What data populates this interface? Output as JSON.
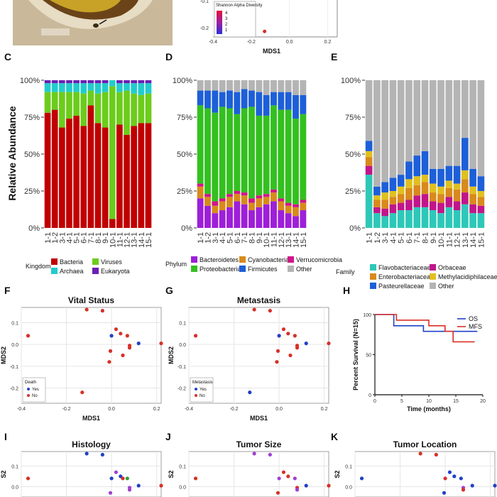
{
  "panel_letters": {
    "C": "C",
    "D": "D",
    "E": "E",
    "F": "F",
    "G": "G",
    "H": "H",
    "I": "I",
    "J": "J",
    "K": "K"
  },
  "shared": {
    "ylabel_rel": "Relative Abundance",
    "mds1": "MDS1",
    "mds2": "MDS2",
    "ylabel_i": "S2"
  },
  "colors": {
    "red": "#d73027",
    "blue": "#2040c8",
    "purple": "#a040d0",
    "green": "#30a030"
  },
  "chart_data": [
    {
      "panel": "A/B",
      "type": "scatter",
      "xlabel": "MDS1",
      "x_ticks": [
        "-0.4",
        "-0.2",
        "0.0",
        "0.2"
      ],
      "y_ticks": [
        "-0.1",
        "-0.2"
      ],
      "legend_title": "Shannon Alpha Diversity",
      "legend_labels": [
        "4",
        "3",
        "2",
        "1"
      ],
      "points": [
        {
          "x": -0.13,
          "y": -0.22
        }
      ]
    },
    {
      "panel": "C",
      "type": "bar",
      "stacked": true,
      "ylabel": "Relative Abundance",
      "legend_title": "Kingdom",
      "legend": [
        "Bacteria",
        "Viruses",
        "Archaea",
        "Eukaryota"
      ],
      "series_colors": [
        "#c00000",
        "#6ccc1c",
        "#22cccc",
        "#6a1fb5"
      ],
      "y_ticks": [
        "0%",
        "25%",
        "50%",
        "75%",
        "100%"
      ],
      "categories": [
        "1-1",
        "1-2",
        "3-1",
        "4-1",
        "5-1",
        "6-1",
        "7-1",
        "8-1",
        "9-1",
        "10-1",
        "11-1",
        "12-1",
        "13-1",
        "14-1",
        "15-1"
      ],
      "values": [
        [
          78,
          80,
          68,
          74,
          76,
          69,
          83,
          71,
          68,
          6,
          70,
          63,
          69,
          71,
          71
        ],
        [
          14,
          12,
          24,
          18,
          16,
          22,
          10,
          20,
          24,
          90,
          22,
          30,
          22,
          19,
          20
        ],
        [
          6,
          6,
          6,
          6,
          6,
          7,
          5,
          7,
          6,
          4,
          6,
          5,
          7,
          8,
          7
        ],
        [
          2,
          2,
          2,
          2,
          2,
          2,
          2,
          2,
          2,
          0,
          2,
          2,
          2,
          2,
          2
        ]
      ]
    },
    {
      "panel": "D",
      "type": "bar",
      "stacked": true,
      "legend_title": "Phylum",
      "legend": [
        "Bacteroidetes",
        "Cyanobacteria",
        "Verrucomicrobia",
        "Proteobacteria",
        "Firmicutes",
        "Other"
      ],
      "series_colors": [
        "#9d1fd8",
        "#d88a1c",
        "#d0168a",
        "#34c020",
        "#1d5fd8",
        "#b4b4b4"
      ],
      "y_ticks": [
        "0%",
        "25%",
        "50%",
        "75%",
        "100%"
      ],
      "categories": [
        "1-1",
        "1-2",
        "3-1",
        "4-1",
        "5-1",
        "6-1",
        "7-1",
        "8-1",
        "9-1",
        "10-1",
        "11-1",
        "12-1",
        "13-1",
        "14-1",
        "15-1"
      ],
      "values": [
        [
          20,
          15,
          10,
          12,
          14,
          18,
          16,
          12,
          14,
          16,
          18,
          12,
          10,
          8,
          12
        ],
        [
          8,
          6,
          5,
          6,
          7,
          5,
          6,
          5,
          6,
          5,
          6,
          6,
          5,
          6,
          5
        ],
        [
          2,
          2,
          3,
          2,
          2,
          2,
          2,
          3,
          2,
          2,
          2,
          2,
          2,
          2,
          2
        ],
        [
          53,
          58,
          60,
          62,
          58,
          52,
          57,
          62,
          54,
          53,
          57,
          60,
          63,
          58,
          58
        ],
        [
          10,
          12,
          15,
          10,
          12,
          15,
          13,
          11,
          16,
          14,
          9,
          12,
          12,
          16,
          13
        ],
        [
          7,
          7,
          7,
          8,
          7,
          8,
          6,
          7,
          8,
          10,
          8,
          8,
          8,
          10,
          10
        ]
      ]
    },
    {
      "panel": "E",
      "type": "bar",
      "stacked": true,
      "legend_title": "Family",
      "legend": [
        "Flavobacteriaceae",
        "Orbaceae",
        "Enterobacteriaceae",
        "Methylacidiphilaceae",
        "Pasteurellaceae",
        "Other"
      ],
      "series_colors": [
        "#2ec8b8",
        "#c0168a",
        "#d88a1c",
        "#e0c020",
        "#1d5fd8",
        "#b4b4b4"
      ],
      "y_ticks": [
        "0%",
        "25%",
        "50%",
        "75%",
        "100%"
      ],
      "categories": [
        "1-1",
        "1-2",
        "3-1",
        "4-1",
        "5-1",
        "6-1",
        "7-1",
        "8-1",
        "9-1",
        "10-1",
        "11-1",
        "12-1",
        "13-1",
        "14-1",
        "15-1"
      ],
      "values": [
        [
          36,
          10,
          8,
          10,
          12,
          12,
          14,
          14,
          12,
          10,
          14,
          12,
          16,
          10,
          10
        ],
        [
          6,
          4,
          5,
          6,
          5,
          7,
          8,
          9,
          6,
          7,
          7,
          6,
          8,
          6,
          5
        ],
        [
          6,
          5,
          6,
          5,
          6,
          8,
          7,
          8,
          6,
          6,
          6,
          8,
          9,
          7,
          6
        ],
        [
          4,
          3,
          5,
          4,
          5,
          6,
          6,
          5,
          6,
          5,
          5,
          4,
          6,
          5,
          4
        ],
        [
          7,
          6,
          7,
          9,
          8,
          12,
          14,
          16,
          10,
          12,
          10,
          12,
          22,
          12,
          10
        ],
        [
          41,
          72,
          69,
          66,
          64,
          55,
          51,
          48,
          60,
          60,
          58,
          58,
          39,
          60,
          65
        ]
      ]
    },
    {
      "panel": "F",
      "type": "scatter",
      "title": "Vital Status",
      "xlabel": "MDS1",
      "ylabel": "MDS2",
      "xlim": [
        -0.4,
        0.22
      ],
      "ylim": [
        -0.27,
        0.17
      ],
      "x_ticks": [
        "-0.4",
        "-0.2",
        "0.0",
        "0.2"
      ],
      "y_ticks": [
        "0.1",
        "0.0",
        "-0.1",
        "-0.2"
      ],
      "legend_title": "Death",
      "legend": [
        "Yes",
        "No"
      ],
      "legend_colors": [
        "#2040c8",
        "#d73027"
      ],
      "points": [
        {
          "x": -0.37,
          "y": 0.04,
          "g": 1
        },
        {
          "x": -0.11,
          "y": 0.16,
          "g": 1
        },
        {
          "x": -0.04,
          "y": 0.155,
          "g": 1
        },
        {
          "x": 0.02,
          "y": 0.07,
          "g": 1
        },
        {
          "x": 0.04,
          "y": 0.05,
          "g": 1
        },
        {
          "x": 0.07,
          "y": 0.04,
          "g": 1
        },
        {
          "x": 0.08,
          "y": -0.005,
          "g": 1
        },
        {
          "x": 0.08,
          "y": -0.015,
          "g": 1
        },
        {
          "x": -0.005,
          "y": -0.03,
          "g": 1
        },
        {
          "x": -0.01,
          "y": -0.08,
          "g": 1
        },
        {
          "x": 0.05,
          "y": -0.05,
          "g": 1
        },
        {
          "x": 0.22,
          "y": 0.005,
          "g": 1
        },
        {
          "x": -0.13,
          "y": -0.22,
          "g": 1
        },
        {
          "x": 0.0,
          "y": 0.04,
          "g": 0
        },
        {
          "x": 0.12,
          "y": 0.005,
          "g": 0
        }
      ]
    },
    {
      "panel": "G",
      "type": "scatter",
      "title": "Metastasis",
      "xlabel": "MDS1",
      "ylabel": "MDS2",
      "xlim": [
        -0.4,
        0.22
      ],
      "ylim": [
        -0.27,
        0.17
      ],
      "x_ticks": [
        "-0.4",
        "-0.2",
        "0.0",
        "0.2"
      ],
      "y_ticks": [
        "0.1",
        "0.0",
        "-0.1",
        "-0.2"
      ],
      "legend_title": "Metastasis",
      "legend": [
        "Yes",
        "No"
      ],
      "legend_colors": [
        "#2040c8",
        "#d73027"
      ],
      "points": [
        {
          "x": -0.37,
          "y": 0.04,
          "g": 1
        },
        {
          "x": -0.11,
          "y": 0.16,
          "g": 1
        },
        {
          "x": -0.04,
          "y": 0.155,
          "g": 1
        },
        {
          "x": 0.04,
          "y": 0.05,
          "g": 1
        },
        {
          "x": 0.07,
          "y": 0.04,
          "g": 1
        },
        {
          "x": 0.08,
          "y": -0.005,
          "g": 1
        },
        {
          "x": 0.08,
          "y": -0.015,
          "g": 1
        },
        {
          "x": -0.005,
          "y": -0.03,
          "g": 1
        },
        {
          "x": -0.01,
          "y": -0.08,
          "g": 1
        },
        {
          "x": 0.05,
          "y": -0.05,
          "g": 1
        },
        {
          "x": 0.22,
          "y": 0.005,
          "g": 1
        },
        {
          "x": 0.02,
          "y": 0.07,
          "g": 1
        },
        {
          "x": 0.0,
          "y": 0.04,
          "g": 0
        },
        {
          "x": 0.12,
          "y": 0.005,
          "g": 0
        },
        {
          "x": -0.13,
          "y": -0.22,
          "g": 0
        }
      ]
    },
    {
      "panel": "H",
      "type": "line",
      "ylabel": "Percent Survival (N=15)",
      "xlabel": "Time (months)",
      "xlim": [
        0,
        20
      ],
      "ylim": [
        0,
        100
      ],
      "x_ticks": [
        "0",
        "5",
        "10",
        "15",
        "20"
      ],
      "y_ticks": [
        "0",
        "50",
        "100"
      ],
      "legend": [
        "OS",
        "MFS"
      ],
      "legend_colors": [
        "#2040c8",
        "#d73027"
      ],
      "series": [
        {
          "name": "OS",
          "steps": [
            [
              0,
              100
            ],
            [
              3.5,
              100
            ],
            [
              3.5,
              86
            ],
            [
              9,
              86
            ],
            [
              9,
              79
            ],
            [
              13,
              79
            ],
            [
              13,
              79
            ],
            [
              19,
              79
            ]
          ]
        },
        {
          "name": "MFS",
          "steps": [
            [
              0,
              100
            ],
            [
              4,
              100
            ],
            [
              4,
              93
            ],
            [
              10,
              93
            ],
            [
              10,
              86
            ],
            [
              13,
              86
            ],
            [
              13,
              79
            ],
            [
              14.5,
              79
            ],
            [
              14.5,
              66
            ],
            [
              18.5,
              66
            ]
          ]
        }
      ]
    },
    {
      "panel": "I",
      "type": "scatter",
      "title": "Histology",
      "ylabel": "S2",
      "ylim": [
        -0.05,
        0.17
      ],
      "y_ticks": [
        "0.1",
        "0.0"
      ],
      "points": [
        {
          "x": -0.37,
          "y": 0.04,
          "g": 1
        },
        {
          "x": -0.11,
          "y": 0.16,
          "g": 0
        },
        {
          "x": -0.04,
          "y": 0.155,
          "g": 0
        },
        {
          "x": 0.02,
          "y": 0.07,
          "g": 2
        },
        {
          "x": 0.04,
          "y": 0.05,
          "g": 0
        },
        {
          "x": 0.07,
          "y": 0.04,
          "g": 3
        },
        {
          "x": 0.08,
          "y": -0.005,
          "g": 2
        },
        {
          "x": 0.08,
          "y": -0.015,
          "g": 2
        },
        {
          "x": -0.005,
          "y": -0.03,
          "g": 2
        },
        {
          "x": 0.05,
          "y": 0.04,
          "g": 1
        },
        {
          "x": 0.0,
          "y": 0.04,
          "g": 0
        },
        {
          "x": 0.12,
          "y": 0.005,
          "g": 0
        },
        {
          "x": 0.22,
          "y": 0.005,
          "g": 1
        }
      ]
    },
    {
      "panel": "J",
      "type": "scatter",
      "title": "Tumor Size",
      "ylabel": "S2",
      "ylim": [
        -0.05,
        0.17
      ],
      "y_ticks": [
        "0.1",
        "0.0"
      ],
      "points": [
        {
          "x": -0.37,
          "y": 0.04,
          "g": 1
        },
        {
          "x": -0.11,
          "y": 0.16,
          "g": 2
        },
        {
          "x": -0.04,
          "y": 0.155,
          "g": 2
        },
        {
          "x": 0.02,
          "y": 0.07,
          "g": 1
        },
        {
          "x": 0.04,
          "y": 0.05,
          "g": 1
        },
        {
          "x": 0.07,
          "y": 0.04,
          "g": 2
        },
        {
          "x": 0.08,
          "y": -0.005,
          "g": 1
        },
        {
          "x": 0.08,
          "y": -0.015,
          "g": 2
        },
        {
          "x": -0.005,
          "y": -0.03,
          "g": 1
        },
        {
          "x": 0.0,
          "y": 0.04,
          "g": 2
        },
        {
          "x": 0.12,
          "y": 0.005,
          "g": 0
        },
        {
          "x": 0.22,
          "y": 0.005,
          "g": 1
        }
      ]
    },
    {
      "panel": "K",
      "type": "scatter",
      "title": "Tumor Location",
      "ylabel": "S2",
      "ylim": [
        -0.05,
        0.17
      ],
      "y_ticks": [
        "0.1",
        "0.0"
      ],
      "points": [
        {
          "x": -0.37,
          "y": 0.04,
          "g": 0
        },
        {
          "x": -0.11,
          "y": 0.16,
          "g": 1
        },
        {
          "x": -0.04,
          "y": 0.155,
          "g": 1
        },
        {
          "x": 0.02,
          "y": 0.07,
          "g": 0
        },
        {
          "x": 0.04,
          "y": 0.05,
          "g": 0
        },
        {
          "x": 0.07,
          "y": 0.04,
          "g": 0
        },
        {
          "x": 0.08,
          "y": -0.005,
          "g": 2
        },
        {
          "x": 0.08,
          "y": -0.015,
          "g": 1
        },
        {
          "x": -0.005,
          "y": -0.03,
          "g": 0
        },
        {
          "x": 0.0,
          "y": 0.04,
          "g": 1
        },
        {
          "x": 0.12,
          "y": 0.005,
          "g": 0
        },
        {
          "x": 0.22,
          "y": 0.005,
          "g": 0
        }
      ]
    }
  ]
}
